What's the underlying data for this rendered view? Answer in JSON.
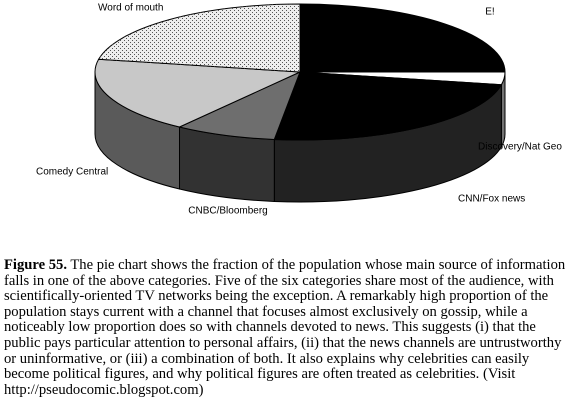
{
  "chart_data": {
    "type": "pie",
    "categories": [
      "E!",
      "Discovery/Nat Geo",
      "CNN/Fox news",
      "CNBC/Bloomberg",
      "Comedy Central",
      "Word of mouth"
    ],
    "values": [
      25,
      3,
      24,
      8,
      18,
      22
    ],
    "colors": [
      "#000000",
      "#ffffff",
      "#000000",
      "#6e6e6e",
      "#c8c8c8",
      "#eeeeee"
    ]
  },
  "caption": {
    "label": "Figure 55.",
    "text": "The pie chart shows the fraction of the population whose main source of information falls in one of the above categories. Five of the six categories share most of the audience, with scientifically-oriented TV networks being the exception. A remarkably high proportion of the population stays current with a channel that focuses almost exclusively on gossip, while a noticeably low proportion does so with channels devoted to news. This suggests (i) that the public pays particular attention to personal affairs, (ii) that the news channels are untrustworthy or uninformative, or (iii) a combination of both. It also explains why celebrities can easily become political figures, and why political figures are often treated as celebrities. (Visit http://pseudocomic.blogspot.com)"
  }
}
